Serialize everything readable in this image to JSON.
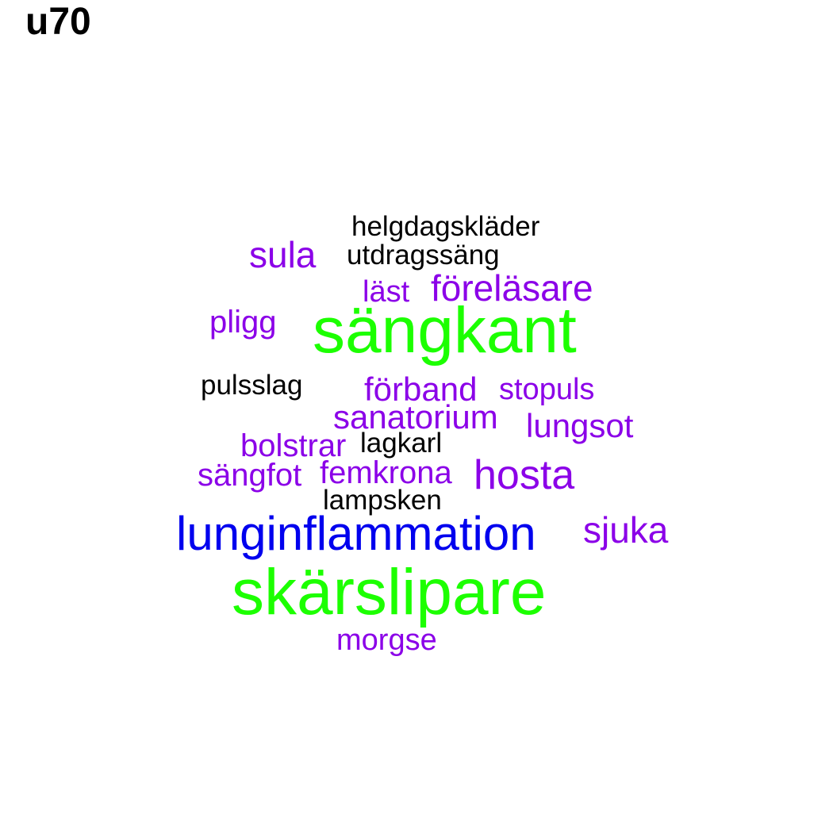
{
  "title": "u70",
  "colors": {
    "black": "#000000",
    "purple": "#8b00e8",
    "blue": "#0000ee",
    "green": "#1cff00"
  },
  "words": [
    {
      "text": "helgdagskläder",
      "color": "black"
    },
    {
      "text": "utdragssäng",
      "color": "black"
    },
    {
      "text": "sula",
      "color": "purple"
    },
    {
      "text": "läst",
      "color": "purple"
    },
    {
      "text": "föreläsare",
      "color": "purple"
    },
    {
      "text": "pligg",
      "color": "purple"
    },
    {
      "text": "sängkant",
      "color": "green"
    },
    {
      "text": "pulsslag",
      "color": "black"
    },
    {
      "text": "förband",
      "color": "purple"
    },
    {
      "text": "stopuls",
      "color": "purple"
    },
    {
      "text": "sanatorium",
      "color": "purple"
    },
    {
      "text": "lungsot",
      "color": "purple"
    },
    {
      "text": "bolstrar",
      "color": "purple"
    },
    {
      "text": "lagkarl",
      "color": "black"
    },
    {
      "text": "sängfot",
      "color": "purple"
    },
    {
      "text": "femkrona",
      "color": "purple"
    },
    {
      "text": "hosta",
      "color": "purple"
    },
    {
      "text": "lampsken",
      "color": "black"
    },
    {
      "text": "lunginflammation",
      "color": "blue"
    },
    {
      "text": "sjuka",
      "color": "purple"
    },
    {
      "text": "skärslipare",
      "color": "green"
    },
    {
      "text": "morgse",
      "color": "purple"
    }
  ]
}
